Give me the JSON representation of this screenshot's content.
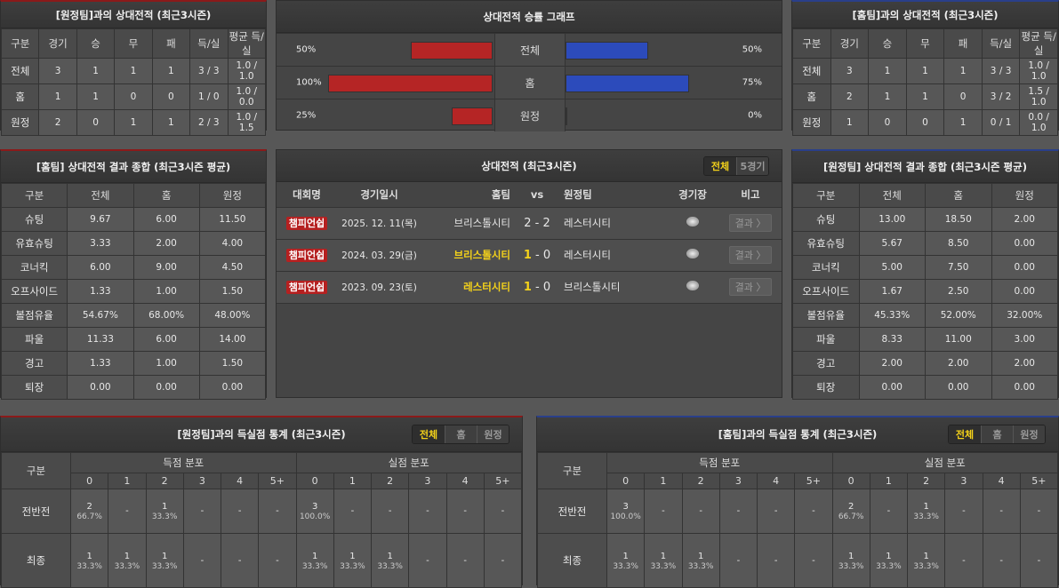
{
  "away_record": {
    "title": "[원정팀]과의 상대전적 (최근3시즌)",
    "headers": [
      "구분",
      "경기",
      "승",
      "무",
      "패",
      "득/실",
      "평균 득/실"
    ],
    "rows": [
      [
        "전체",
        "3",
        "1",
        "1",
        "1",
        "3 / 3",
        "1.0 / 1.0"
      ],
      [
        "홈",
        "1",
        "1",
        "0",
        "0",
        "1 / 0",
        "1.0 / 0.0"
      ],
      [
        "원정",
        "2",
        "0",
        "1",
        "1",
        "2 / 3",
        "1.0 / 1.5"
      ]
    ]
  },
  "home_record": {
    "title": "[홈팀]과의 상대전적 (최근3시즌)",
    "headers": [
      "구분",
      "경기",
      "승",
      "무",
      "패",
      "득/실",
      "평균 득/실"
    ],
    "rows": [
      [
        "전체",
        "3",
        "1",
        "1",
        "1",
        "3 / 3",
        "1.0 / 1.0"
      ],
      [
        "홈",
        "2",
        "1",
        "1",
        "0",
        "3 / 2",
        "1.5 / 1.0"
      ],
      [
        "원정",
        "1",
        "0",
        "0",
        "1",
        "0 / 1",
        "0.0 / 1.0"
      ]
    ]
  },
  "graph": {
    "title": "상대전적 승률 그래프",
    "colors": {
      "left": "#b52525",
      "right": "#2c4bbb"
    },
    "rows": [
      {
        "label": "전체",
        "left": "50%",
        "left_value": 50,
        "right": "50%",
        "right_value": 50
      },
      {
        "label": "홈",
        "left": "100%",
        "left_value": 100,
        "right": "75%",
        "right_value": 75
      },
      {
        "label": "원정",
        "left": "25%",
        "left_value": 25,
        "right": "0%",
        "right_value": 0
      }
    ]
  },
  "home_summary": {
    "title": "[홈팀] 상대전적 결과 종합 (최근3시즌 평균)",
    "headers": [
      "구분",
      "전체",
      "홈",
      "원정"
    ],
    "rows": [
      [
        "슈팅",
        "9.67",
        "6.00",
        "11.50"
      ],
      [
        "유효슈팅",
        "3.33",
        "2.00",
        "4.00"
      ],
      [
        "코너킥",
        "6.00",
        "9.00",
        "4.50"
      ],
      [
        "오프사이드",
        "1.33",
        "1.00",
        "1.50"
      ],
      [
        "볼점유율",
        "54.67%",
        "68.00%",
        "48.00%"
      ],
      [
        "파울",
        "11.33",
        "6.00",
        "14.00"
      ],
      [
        "경고",
        "1.33",
        "1.00",
        "1.50"
      ],
      [
        "퇴장",
        "0.00",
        "0.00",
        "0.00"
      ]
    ]
  },
  "away_summary": {
    "title": "[원정팀] 상대전적 결과 종합 (최근3시즌 평균)",
    "headers": [
      "구분",
      "전체",
      "홈",
      "원정"
    ],
    "rows": [
      [
        "슈팅",
        "13.00",
        "18.50",
        "2.00"
      ],
      [
        "유효슈팅",
        "5.67",
        "8.50",
        "0.00"
      ],
      [
        "코너킥",
        "5.00",
        "7.50",
        "0.00"
      ],
      [
        "오프사이드",
        "1.67",
        "2.50",
        "0.00"
      ],
      [
        "볼점유율",
        "45.33%",
        "52.00%",
        "32.00%"
      ],
      [
        "파울",
        "8.33",
        "11.00",
        "3.00"
      ],
      [
        "경고",
        "2.00",
        "2.00",
        "2.00"
      ],
      [
        "퇴장",
        "0.00",
        "0.00",
        "0.00"
      ]
    ]
  },
  "matches": {
    "title": "상대전적 (최근3시즌)",
    "tabs": [
      "전체",
      "5경기"
    ],
    "headers": {
      "competition": "대회명",
      "date": "경기일시",
      "home": "홈팀",
      "vs": "vs",
      "away": "원정팀",
      "venue": "경기장",
      "note": "비고"
    },
    "rows": [
      {
        "competition": "챔피언쉽",
        "date": "2025. 12. 11(목)",
        "home": "브리스톨시티",
        "home_score": "2",
        "sep": "-",
        "away_score": "2",
        "away": "레스터시티",
        "winner": "none",
        "result": "결과 〉"
      },
      {
        "competition": "챔피언쉽",
        "date": "2024. 03. 29(금)",
        "home": "브리스톨시티",
        "home_score": "1",
        "sep": "-",
        "away_score": "0",
        "away": "레스터시티",
        "winner": "home",
        "result": "결과 〉"
      },
      {
        "competition": "챔피언쉽",
        "date": "2023. 09. 23(토)",
        "home": "레스터시티",
        "home_score": "1",
        "sep": "-",
        "away_score": "0",
        "away": "브리스톨시티",
        "winner": "home",
        "result": "결과 〉"
      }
    ]
  },
  "away_goals": {
    "title": "[원정팀]과의 득실점 통계 (최근3시즌)",
    "tabs": [
      "전체",
      "홈",
      "원정"
    ],
    "label_header": "구분",
    "groups": [
      "득점 분포",
      "실점 분포"
    ],
    "buckets": [
      "0",
      "1",
      "2",
      "3",
      "4",
      "5+",
      "0",
      "1",
      "2",
      "3",
      "4",
      "5+"
    ],
    "rows": [
      {
        "label": "전반전",
        "cells": [
          [
            "2",
            "66.7%"
          ],
          [
            "-",
            ""
          ],
          [
            "1",
            "33.3%"
          ],
          [
            "-",
            ""
          ],
          [
            "-",
            ""
          ],
          [
            "-",
            ""
          ],
          [
            "3",
            "100.0%"
          ],
          [
            "-",
            ""
          ],
          [
            "-",
            ""
          ],
          [
            "-",
            ""
          ],
          [
            "-",
            ""
          ],
          [
            "-",
            ""
          ]
        ]
      },
      {
        "label": "최종",
        "cells": [
          [
            "1",
            "33.3%"
          ],
          [
            "1",
            "33.3%"
          ],
          [
            "1",
            "33.3%"
          ],
          [
            "-",
            ""
          ],
          [
            "-",
            ""
          ],
          [
            "-",
            ""
          ],
          [
            "1",
            "33.3%"
          ],
          [
            "1",
            "33.3%"
          ],
          [
            "1",
            "33.3%"
          ],
          [
            "-",
            ""
          ],
          [
            "-",
            ""
          ],
          [
            "-",
            ""
          ]
        ]
      }
    ]
  },
  "home_goals": {
    "title": "[홈팀]과의 득실점 통계 (최근3시즌)",
    "tabs": [
      "전체",
      "홈",
      "원정"
    ],
    "label_header": "구분",
    "groups": [
      "득점 분포",
      "실점 분포"
    ],
    "buckets": [
      "0",
      "1",
      "2",
      "3",
      "4",
      "5+",
      "0",
      "1",
      "2",
      "3",
      "4",
      "5+"
    ],
    "rows": [
      {
        "label": "전반전",
        "cells": [
          [
            "3",
            "100.0%"
          ],
          [
            "-",
            ""
          ],
          [
            "-",
            ""
          ],
          [
            "-",
            ""
          ],
          [
            "-",
            ""
          ],
          [
            "-",
            ""
          ],
          [
            "2",
            "66.7%"
          ],
          [
            "-",
            ""
          ],
          [
            "1",
            "33.3%"
          ],
          [
            "-",
            ""
          ],
          [
            "-",
            ""
          ],
          [
            "-",
            ""
          ]
        ]
      },
      {
        "label": "최종",
        "cells": [
          [
            "1",
            "33.3%"
          ],
          [
            "1",
            "33.3%"
          ],
          [
            "1",
            "33.3%"
          ],
          [
            "-",
            ""
          ],
          [
            "-",
            ""
          ],
          [
            "-",
            ""
          ],
          [
            "1",
            "33.3%"
          ],
          [
            "1",
            "33.3%"
          ],
          [
            "1",
            "33.3%"
          ],
          [
            "-",
            ""
          ],
          [
            "-",
            ""
          ],
          [
            "-",
            ""
          ]
        ]
      }
    ]
  }
}
